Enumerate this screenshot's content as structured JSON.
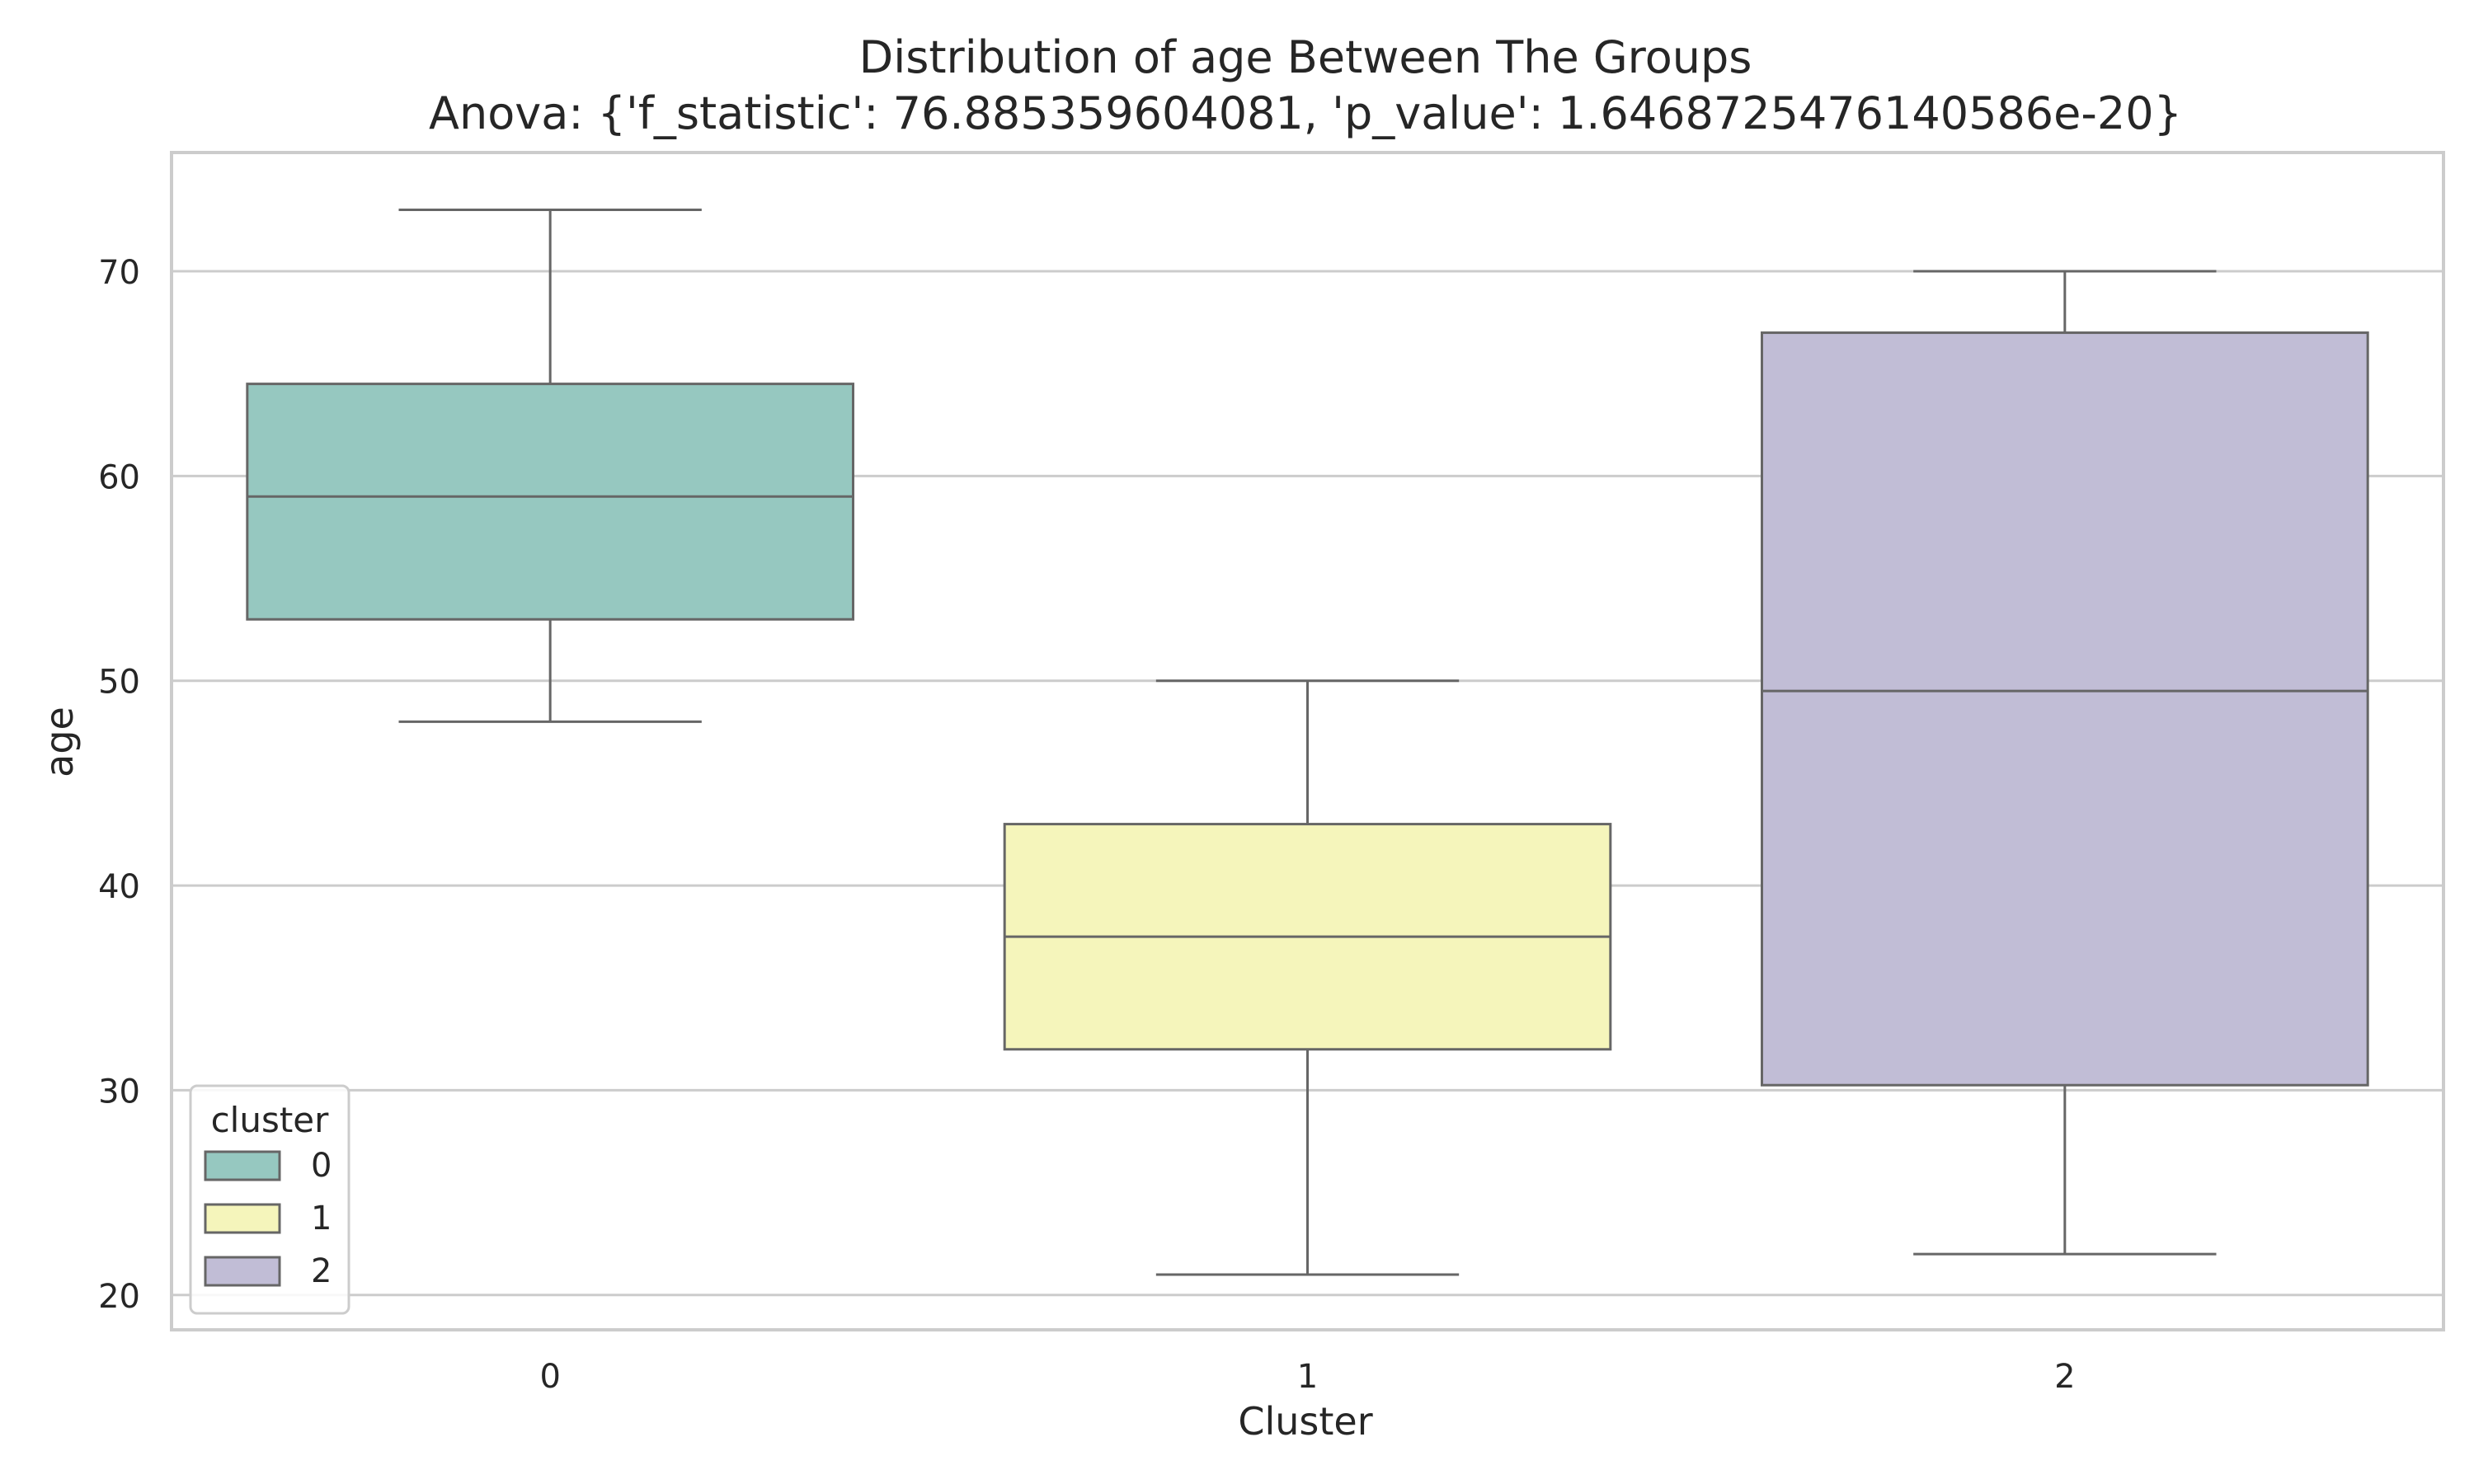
{
  "chart_data": {
    "type": "box",
    "title": "Distribution of age Between The Groups",
    "subtitle": "Anova: {'f_statistic': 76.885359604081, 'p_value': 1.6468725476140586e-20}",
    "xlabel": "Cluster",
    "ylabel": "age",
    "categories": [
      "0",
      "1",
      "2"
    ],
    "boxes": [
      {
        "category": "0",
        "whisker_low": 48,
        "q1": 53,
        "median": 59,
        "q3": 64.5,
        "whisker_high": 73,
        "color": "#96c8c0"
      },
      {
        "category": "1",
        "whisker_low": 21,
        "q1": 32,
        "median": 37.5,
        "q3": 43,
        "whisker_high": 50,
        "color": "#f5f5bb"
      },
      {
        "category": "2",
        "whisker_low": 22,
        "q1": 30.25,
        "median": 49.5,
        "q3": 67,
        "whisker_high": 70,
        "color": "#c1bdd6"
      }
    ],
    "ylim": [
      18.3,
      75.8
    ],
    "yticks": [
      20,
      30,
      40,
      50,
      60,
      70
    ],
    "grid": true,
    "legend": {
      "title": "cluster",
      "placement": "lower-left",
      "entries": [
        "0",
        "1",
        "2"
      ]
    }
  },
  "colors": {
    "grid": "#cccccc",
    "spine": "#cccccc",
    "box_edge": "#666666",
    "text": "#262626"
  }
}
